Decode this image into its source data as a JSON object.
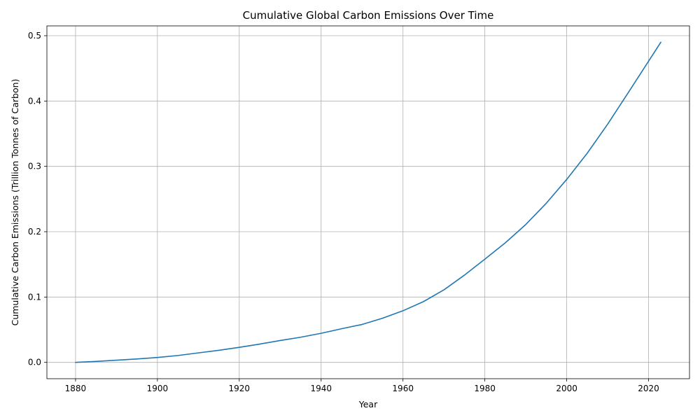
{
  "chart_data": {
    "type": "line",
    "title": "Cumulative Global Carbon Emissions Over Time",
    "xlabel": "Year",
    "ylabel": "Cumulative Carbon Emissions (Trillion Tonnes of Carbon)",
    "xlim": [
      1873,
      2030
    ],
    "ylim": [
      -0.025,
      0.515
    ],
    "xticks": [
      1880,
      1900,
      1920,
      1940,
      1960,
      1980,
      2000,
      2020
    ],
    "xtick_labels": [
      "1880",
      "1900",
      "1920",
      "1940",
      "1960",
      "1980",
      "2000",
      "2020"
    ],
    "yticks": [
      0.0,
      0.1,
      0.2,
      0.3,
      0.4,
      0.5
    ],
    "ytick_labels": [
      "0.0",
      "0.1",
      "0.2",
      "0.3",
      "0.4",
      "0.5"
    ],
    "grid": true,
    "series": [
      {
        "color": "#1f77b4",
        "x": [
          1880,
          1885,
          1890,
          1895,
          1900,
          1905,
          1910,
          1915,
          1920,
          1925,
          1930,
          1935,
          1940,
          1945,
          1950,
          1955,
          1960,
          1965,
          1970,
          1975,
          1980,
          1985,
          1990,
          1995,
          2000,
          2005,
          2010,
          2015,
          2020,
          2023
        ],
        "y": [
          0.0,
          0.0015,
          0.0033,
          0.0052,
          0.0075,
          0.0105,
          0.0145,
          0.0185,
          0.023,
          0.028,
          0.0335,
          0.0385,
          0.0445,
          0.0515,
          0.058,
          0.0675,
          0.079,
          0.093,
          0.111,
          0.1335,
          0.158,
          0.183,
          0.211,
          0.2435,
          0.28,
          0.32,
          0.3645,
          0.4125,
          0.461,
          0.49
        ]
      }
    ]
  }
}
